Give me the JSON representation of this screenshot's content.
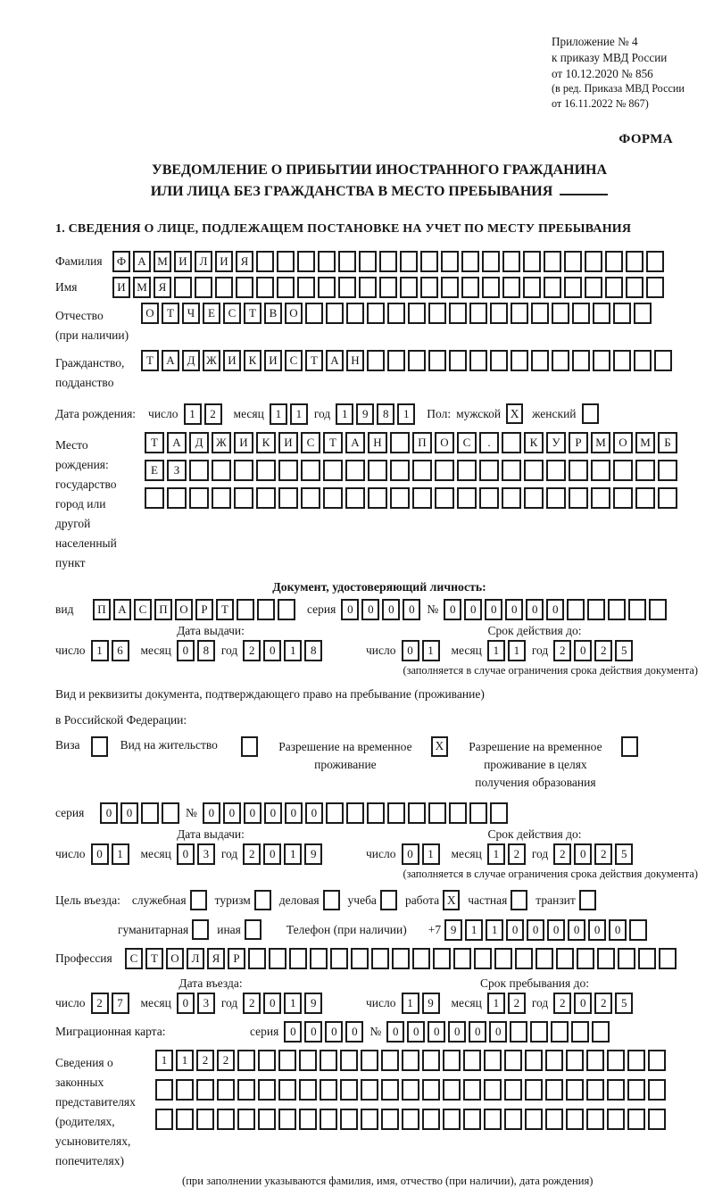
{
  "header": {
    "note_lines": [
      "Приложение № 4",
      "к приказу МВД России",
      "от 10.12.2020 № 856"
    ],
    "amendment_lines": [
      "(в ред. Приказа МВД России",
      "от 16.11.2022 № 867)"
    ],
    "forma": "ФОРМА"
  },
  "title": {
    "line1": "УВЕДОМЛЕНИЕ О ПРИБЫТИИ ИНОСТРАННОГО ГРАЖДАНИНА",
    "line2": "ИЛИ ЛИЦА БЕЗ ГРАЖДАНСТВА В МЕСТО ПРЕБЫВАНИЯ"
  },
  "section1_heading": "1. СВЕДЕНИЯ О ЛИЦЕ, ПОДЛЕЖАЩЕМ ПОСТАНОВКЕ НА УЧЕТ ПО МЕСТУ ПРЕБЫВАНИЯ",
  "lbl": {
    "day": "число",
    "month": "месяц",
    "year": "год",
    "series": "серия",
    "number": "№"
  },
  "fields": {
    "surname": {
      "label": "Фамилия",
      "cells": "ФАМИЛИЯ",
      "total": 27
    },
    "given_name": {
      "label": "Имя",
      "cells": "ИМЯ",
      "total": 27
    },
    "patronymic": {
      "label1": "Отчество",
      "label2": "(при наличии)",
      "cells": "ОТЧЕСТВО",
      "total": 25
    },
    "citizenship": {
      "label1": "Гражданство,",
      "label2": "подданство",
      "cells": "ТАДЖИКИСТАН",
      "total": 26
    }
  },
  "birth": {
    "label": "Дата рождения:",
    "day": {
      "cells": "12"
    },
    "month": {
      "cells": "11"
    },
    "year": {
      "cells": "1981"
    },
    "sex_label": "Пол:",
    "male_label": "мужской",
    "male_checked": "X",
    "female_label": "женский",
    "female_checked": ""
  },
  "birth_place": {
    "labels": [
      "Место рождения:",
      "государство",
      "город или другой",
      "населенный пункт"
    ],
    "row1": {
      "cells": "ТАДЖИКИСТАН ПОС. КУРМОМБ",
      "total": 24
    },
    "row2": {
      "cells": "ЕЗ",
      "total": 24
    },
    "row3": {
      "cells": "",
      "total": 24
    }
  },
  "identity_doc": {
    "heading": "Документ, удостоверяющий личность:",
    "kind_label": "вид",
    "kind": {
      "cells": "ПАСПОРТ",
      "total": 10
    },
    "series": {
      "cells": "0000",
      "total": 4
    },
    "number": {
      "cells": "000000",
      "total": 11
    },
    "issue_header": "Дата выдачи:",
    "issue": {
      "day": {
        "cells": "16"
      },
      "month": {
        "cells": "08"
      },
      "year": {
        "cells": "2018"
      }
    },
    "expiry_header": "Срок действия до:",
    "expiry": {
      "day": {
        "cells": "01"
      },
      "month": {
        "cells": "11"
      },
      "year": {
        "cells": "2025"
      }
    },
    "note": "(заполняется в случае ограничения срока действия документа)"
  },
  "stay_doc": {
    "line1": "Вид и реквизиты документа, подтверждающего право на пребывание (проживание)",
    "line2": "в Российской Федерации:",
    "options": [
      {
        "label": "Виза",
        "checked": ""
      },
      {
        "label": "Вид на жительство",
        "checked": ""
      },
      {
        "label": "Разрешение на временное проживание",
        "checked": "X"
      },
      {
        "label": "Разрешение на временное проживание в целях получения образования",
        "checked": ""
      }
    ],
    "series": {
      "cells": "00",
      "total": 4
    },
    "number": {
      "cells": "000000",
      "total": 15
    },
    "issue_header": "Дата выдачи:",
    "issue": {
      "day": {
        "cells": "01"
      },
      "month": {
        "cells": "03"
      },
      "year": {
        "cells": "2019"
      }
    },
    "expiry_header": "Срок действия до:",
    "expiry": {
      "day": {
        "cells": "01"
      },
      "month": {
        "cells": "12"
      },
      "year": {
        "cells": "2025"
      }
    },
    "note": "(заполняется в случае ограничения срока действия документа)"
  },
  "purpose": {
    "label": "Цель въезда:",
    "options": [
      {
        "label": "служебная",
        "checked": ""
      },
      {
        "label": "туризм",
        "checked": ""
      },
      {
        "label": "деловая",
        "checked": ""
      },
      {
        "label": "учеба",
        "checked": ""
      },
      {
        "label": "работа",
        "checked": "X"
      },
      {
        "label": "частная",
        "checked": ""
      },
      {
        "label": "транзит",
        "checked": ""
      },
      {
        "label": "гуманитарная",
        "checked": ""
      },
      {
        "label": "иная",
        "checked": ""
      }
    ],
    "phone_label": "Телефон (при наличии)",
    "phone_prefix": "+7",
    "phone": {
      "cells": "911000000",
      "total": 10
    }
  },
  "profession": {
    "label": "Профессия",
    "cells": "СТОЛЯР",
    "total": 27
  },
  "entry": {
    "entry_header": "Дата въезда:",
    "entry_date": {
      "day": {
        "cells": "27"
      },
      "month": {
        "cells": "03"
      },
      "year": {
        "cells": "2019"
      }
    },
    "stay_header": "Срок пребывания до:",
    "stay_date": {
      "day": {
        "cells": "19"
      },
      "month": {
        "cells": "12"
      },
      "year": {
        "cells": "2025"
      }
    }
  },
  "migration_card": {
    "label": "Миграционная карта:",
    "series": {
      "cells": "0000",
      "total": 4
    },
    "number": {
      "cells": "000000",
      "total": 11
    }
  },
  "representatives": {
    "label_lines": [
      "Сведения о",
      "законных",
      "представителях",
      "(родителях,",
      "усыновителях,",
      "попечителях)"
    ],
    "row1": {
      "cells": "1122",
      "total": 25
    },
    "row2": {
      "cells": "",
      "total": 25
    },
    "row3": {
      "cells": "",
      "total": 25
    },
    "note": "(при заполнении указываются фамилия, имя, отчество (при наличии), дата рождения)"
  }
}
